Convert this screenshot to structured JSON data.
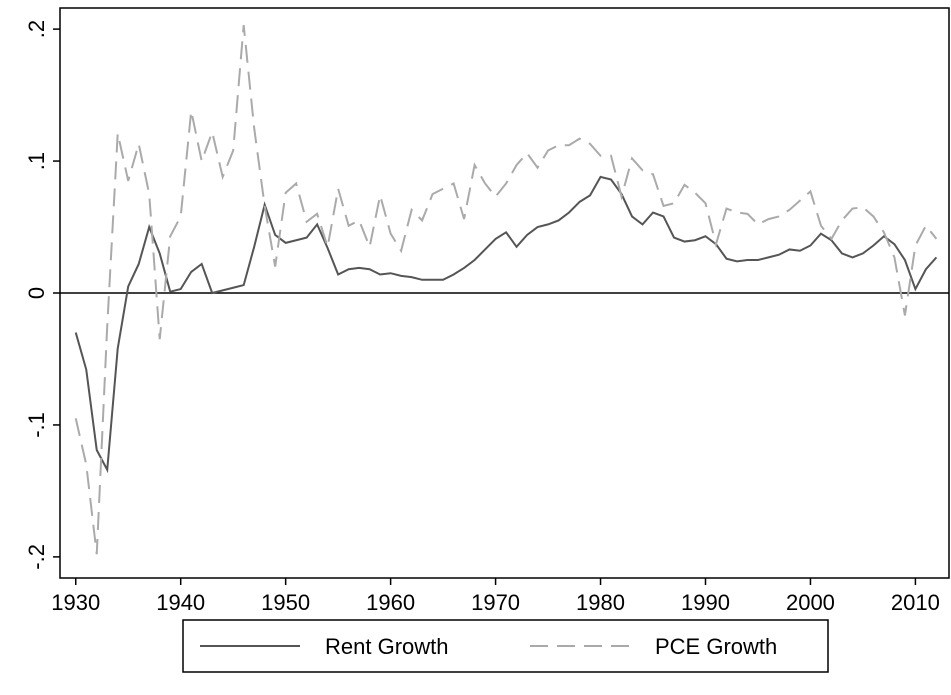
{
  "chart_data": {
    "type": "line",
    "x": [
      1930,
      1931,
      1932,
      1933,
      1934,
      1935,
      1936,
      1937,
      1938,
      1939,
      1940,
      1941,
      1942,
      1943,
      1944,
      1945,
      1946,
      1947,
      1948,
      1949,
      1950,
      1951,
      1952,
      1953,
      1954,
      1955,
      1956,
      1957,
      1958,
      1959,
      1960,
      1961,
      1962,
      1963,
      1964,
      1965,
      1966,
      1967,
      1968,
      1969,
      1970,
      1971,
      1972,
      1973,
      1974,
      1975,
      1976,
      1977,
      1978,
      1979,
      1980,
      1981,
      1982,
      1983,
      1984,
      1985,
      1986,
      1987,
      1988,
      1989,
      1990,
      1991,
      1992,
      1993,
      1994,
      1995,
      1996,
      1997,
      1998,
      1999,
      2000,
      2001,
      2002,
      2003,
      2004,
      2005,
      2006,
      2007,
      2008,
      2009,
      2010,
      2011,
      2012
    ],
    "series": [
      {
        "name": "Rent Growth",
        "color": "#555555",
        "style": "solid",
        "values": [
          -0.03,
          -0.058,
          -0.119,
          -0.134,
          -0.042,
          0.005,
          0.022,
          0.05,
          0.03,
          0.001,
          0.003,
          0.016,
          0.022,
          0.0,
          0.002,
          0.004,
          0.006,
          0.035,
          0.067,
          0.044,
          0.038,
          0.04,
          0.042,
          0.052,
          0.034,
          0.014,
          0.018,
          0.019,
          0.018,
          0.014,
          0.015,
          0.013,
          0.012,
          0.01,
          0.01,
          0.01,
          0.014,
          0.019,
          0.025,
          0.033,
          0.041,
          0.046,
          0.035,
          0.044,
          0.05,
          0.052,
          0.055,
          0.061,
          0.069,
          0.074,
          0.088,
          0.086,
          0.075,
          0.058,
          0.052,
          0.061,
          0.058,
          0.042,
          0.039,
          0.04,
          0.043,
          0.037,
          0.026,
          0.024,
          0.025,
          0.025,
          0.027,
          0.029,
          0.033,
          0.032,
          0.036,
          0.045,
          0.04,
          0.03,
          0.027,
          0.03,
          0.036,
          0.043,
          0.037,
          0.025,
          0.003,
          0.018,
          0.027
        ]
      },
      {
        "name": "PCE Growth",
        "color": "#aaaaaa",
        "style": "dashed",
        "values": [
          -0.095,
          -0.13,
          -0.198,
          -0.025,
          0.121,
          0.085,
          0.113,
          0.075,
          -0.035,
          0.043,
          0.058,
          0.138,
          0.1,
          0.122,
          0.088,
          0.108,
          0.203,
          0.125,
          0.066,
          0.02,
          0.076,
          0.083,
          0.054,
          0.06,
          0.035,
          0.079,
          0.051,
          0.055,
          0.035,
          0.074,
          0.045,
          0.032,
          0.063,
          0.055,
          0.075,
          0.079,
          0.083,
          0.056,
          0.097,
          0.083,
          0.073,
          0.083,
          0.097,
          0.106,
          0.095,
          0.108,
          0.112,
          0.112,
          0.117,
          0.113,
          0.104,
          0.104,
          0.073,
          0.102,
          0.093,
          0.09,
          0.066,
          0.068,
          0.082,
          0.076,
          0.068,
          0.037,
          0.064,
          0.061,
          0.06,
          0.052,
          0.056,
          0.058,
          0.063,
          0.07,
          0.077,
          0.051,
          0.041,
          0.055,
          0.064,
          0.065,
          0.058,
          0.046,
          0.027,
          -0.017,
          0.036,
          0.051,
          0.041
        ]
      }
    ],
    "xlim": [
      1928.5,
      2013.2
    ],
    "xticks": [
      1930,
      1940,
      1950,
      1960,
      1970,
      1980,
      1990,
      2000,
      2010
    ],
    "ylim": [
      -0.216,
      0.216
    ],
    "yticks": [
      {
        "value": -0.2,
        "label": "-.2"
      },
      {
        "value": -0.1,
        "label": "-.1"
      },
      0,
      {
        "value": 0.1,
        "label": ".1"
      },
      {
        "value": 0.2,
        "label": ".2"
      }
    ],
    "refline": 0,
    "legend": "bottom"
  }
}
